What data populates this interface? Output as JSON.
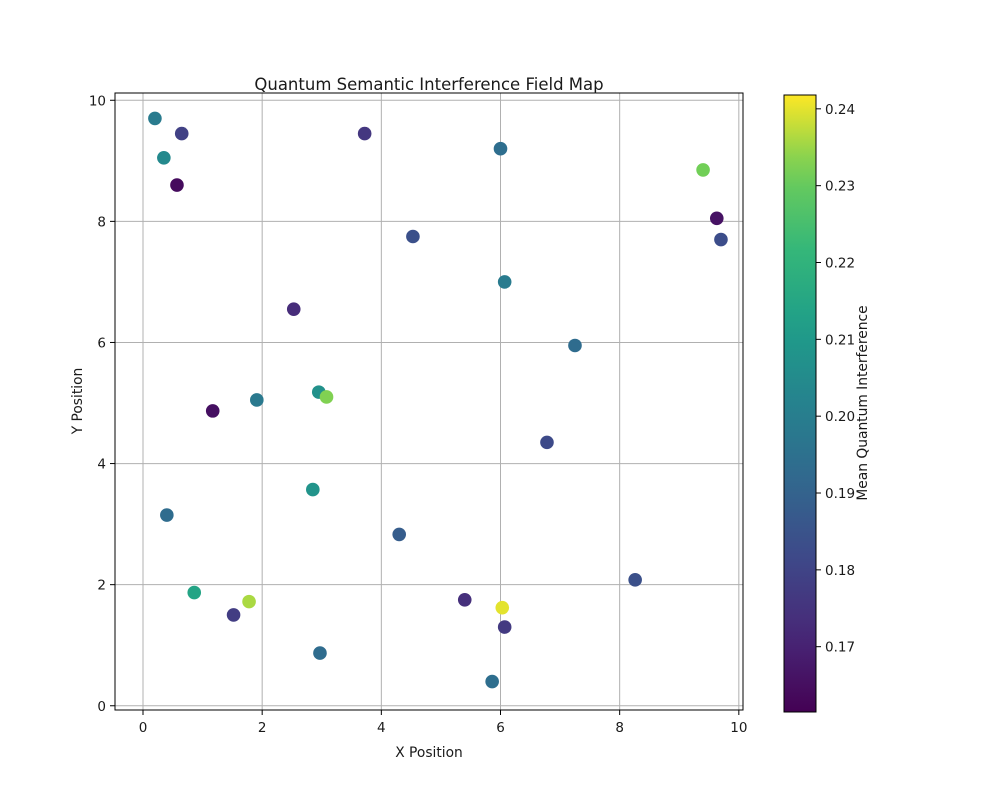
{
  "chart_data": {
    "type": "scatter",
    "title": "Quantum Semantic Interference Field Map",
    "xlabel": "X Position",
    "ylabel": "Y Position",
    "xlim": [
      -0.47,
      10.07
    ],
    "ylim": [
      -0.07,
      10.12
    ],
    "xticks": [
      0,
      2,
      4,
      6,
      8,
      10
    ],
    "yticks": [
      0,
      2,
      4,
      6,
      8,
      10
    ],
    "grid": true,
    "grid_color": "#b0b0b0",
    "colormap": "viridis",
    "marker_size_px": 13.6,
    "colorbar": {
      "label": "Mean Quantum Interference",
      "ticks": [
        0.17,
        0.18,
        0.19,
        0.2,
        0.21,
        0.22,
        0.23,
        0.24
      ],
      "vmin": 0.1615,
      "vmax": 0.2418
    },
    "points": [
      {
        "x": 0.2,
        "y": 9.7,
        "value": 0.199
      },
      {
        "x": 0.65,
        "y": 9.45,
        "value": 0.179
      },
      {
        "x": 0.35,
        "y": 9.05,
        "value": 0.204
      },
      {
        "x": 0.57,
        "y": 8.6,
        "value": 0.164
      },
      {
        "x": 3.72,
        "y": 9.45,
        "value": 0.176
      },
      {
        "x": 6.0,
        "y": 9.2,
        "value": 0.194
      },
      {
        "x": 9.4,
        "y": 8.85,
        "value": 0.232
      },
      {
        "x": 9.63,
        "y": 8.05,
        "value": 0.166
      },
      {
        "x": 9.7,
        "y": 7.7,
        "value": 0.183
      },
      {
        "x": 4.53,
        "y": 7.75,
        "value": 0.184
      },
      {
        "x": 6.07,
        "y": 7.0,
        "value": 0.199
      },
      {
        "x": 2.53,
        "y": 6.55,
        "value": 0.173
      },
      {
        "x": 7.25,
        "y": 5.95,
        "value": 0.193
      },
      {
        "x": 2.95,
        "y": 5.18,
        "value": 0.207
      },
      {
        "x": 3.08,
        "y": 5.1,
        "value": 0.233
      },
      {
        "x": 1.91,
        "y": 5.05,
        "value": 0.198
      },
      {
        "x": 1.17,
        "y": 4.87,
        "value": 0.165
      },
      {
        "x": 6.78,
        "y": 4.35,
        "value": 0.182
      },
      {
        "x": 2.85,
        "y": 3.57,
        "value": 0.208
      },
      {
        "x": 0.4,
        "y": 3.15,
        "value": 0.193
      },
      {
        "x": 4.3,
        "y": 2.83,
        "value": 0.188
      },
      {
        "x": 8.26,
        "y": 2.08,
        "value": 0.184
      },
      {
        "x": 0.86,
        "y": 1.87,
        "value": 0.214
      },
      {
        "x": 1.78,
        "y": 1.72,
        "value": 0.236
      },
      {
        "x": 1.52,
        "y": 1.5,
        "value": 0.178
      },
      {
        "x": 5.4,
        "y": 1.75,
        "value": 0.174
      },
      {
        "x": 6.03,
        "y": 1.62,
        "value": 0.24
      },
      {
        "x": 6.07,
        "y": 1.3,
        "value": 0.177
      },
      {
        "x": 2.97,
        "y": 0.87,
        "value": 0.193
      },
      {
        "x": 5.86,
        "y": 0.4,
        "value": 0.194
      }
    ]
  }
}
